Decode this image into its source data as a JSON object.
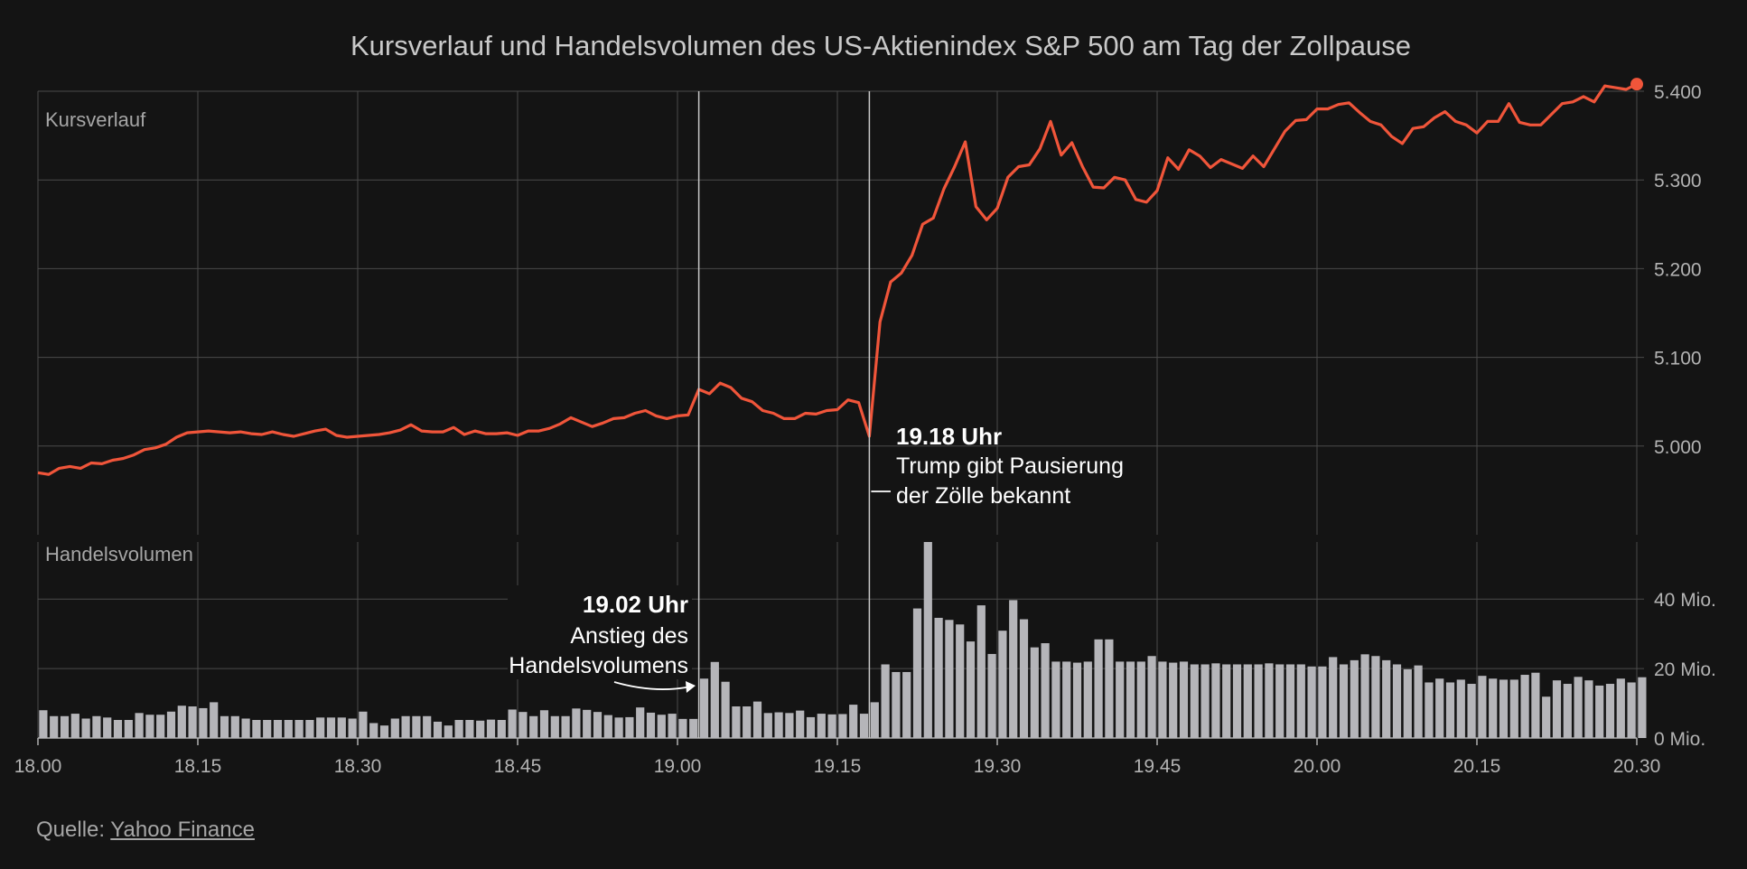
{
  "chart_data": {
    "type": "line+bar",
    "title": "Kursverlauf und Handelsvolumen des US-Aktienindex S&P 500 am Tag der Zollpause",
    "price_panel_label": "Kursverlauf",
    "volume_panel_label": "Handelsvolumen",
    "x_range_minutes": [
      0,
      150
    ],
    "x_ticks": [
      {
        "m": 0,
        "label": "18.00"
      },
      {
        "m": 15,
        "label": "18.15"
      },
      {
        "m": 30,
        "label": "18.30"
      },
      {
        "m": 45,
        "label": "18.45"
      },
      {
        "m": 60,
        "label": "19.00"
      },
      {
        "m": 75,
        "label": "19.15"
      },
      {
        "m": 90,
        "label": "19.30"
      },
      {
        "m": 105,
        "label": "19.45"
      },
      {
        "m": 120,
        "label": "20.00"
      },
      {
        "m": 135,
        "label": "20.15"
      },
      {
        "m": 150,
        "label": "20.30"
      }
    ],
    "price_ylim": [
      4900,
      5400
    ],
    "price_ticks": [
      {
        "v": 5000,
        "label": "5.000"
      },
      {
        "v": 5100,
        "label": "5.100"
      },
      {
        "v": 5200,
        "label": "5.200"
      },
      {
        "v": 5300,
        "label": "5.300"
      },
      {
        "v": 5400,
        "label": "5.400"
      }
    ],
    "volume_ylim_mio": [
      0,
      40
    ],
    "volume_ticks": [
      {
        "v": 0,
        "label": "0 Mio."
      },
      {
        "v": 20,
        "label": "20 Mio."
      },
      {
        "v": 40,
        "label": "40 Mio."
      }
    ],
    "line_color": "#f0553a",
    "bar_color": "#b5b5b9",
    "price_series": [
      [
        0,
        4970
      ],
      [
        1,
        4968
      ],
      [
        2,
        4975
      ],
      [
        3,
        4977
      ],
      [
        4,
        4975
      ],
      [
        5,
        4981
      ],
      [
        6,
        4980
      ],
      [
        7,
        4984
      ],
      [
        8,
        4986
      ],
      [
        9,
        4990
      ],
      [
        10,
        4996
      ],
      [
        11,
        4998
      ],
      [
        12,
        5002
      ],
      [
        13,
        5010
      ],
      [
        14,
        5015
      ],
      [
        15,
        5016
      ],
      [
        16,
        5017
      ],
      [
        17,
        5016
      ],
      [
        18,
        5015
      ],
      [
        19,
        5016
      ],
      [
        20,
        5014
      ],
      [
        21,
        5013
      ],
      [
        22,
        5016
      ],
      [
        23,
        5013
      ],
      [
        24,
        5011
      ],
      [
        25,
        5014
      ],
      [
        26,
        5017
      ],
      [
        27,
        5019
      ],
      [
        28,
        5012
      ],
      [
        29,
        5010
      ],
      [
        30,
        5011
      ],
      [
        31,
        5012
      ],
      [
        32,
        5013
      ],
      [
        33,
        5015
      ],
      [
        34,
        5018
      ],
      [
        35,
        5024
      ],
      [
        36,
        5017
      ],
      [
        37,
        5016
      ],
      [
        38,
        5016
      ],
      [
        39,
        5021
      ],
      [
        40,
        5013
      ],
      [
        41,
        5017
      ],
      [
        42,
        5014
      ],
      [
        43,
        5014
      ],
      [
        44,
        5015
      ],
      [
        45,
        5012
      ],
      [
        46,
        5017
      ],
      [
        47,
        5017
      ],
      [
        48,
        5020
      ],
      [
        49,
        5025
      ],
      [
        50,
        5032
      ],
      [
        51,
        5027
      ],
      [
        52,
        5022
      ],
      [
        53,
        5026
      ],
      [
        54,
        5031
      ],
      [
        55,
        5032
      ],
      [
        56,
        5037
      ],
      [
        57,
        5040
      ],
      [
        58,
        5034
      ],
      [
        59,
        5031
      ],
      [
        60,
        5034
      ],
      [
        61,
        5035
      ],
      [
        62,
        5064
      ],
      [
        63,
        5059
      ],
      [
        64,
        5071
      ],
      [
        65,
        5066
      ],
      [
        66,
        5054
      ],
      [
        67,
        5050
      ],
      [
        68,
        5040
      ],
      [
        69,
        5037
      ],
      [
        70,
        5031
      ],
      [
        71,
        5031
      ],
      [
        72,
        5037
      ],
      [
        73,
        5036
      ],
      [
        74,
        5040
      ],
      [
        75,
        5041
      ],
      [
        76,
        5052
      ],
      [
        77,
        5049
      ],
      [
        78,
        5011
      ],
      [
        79,
        5140
      ],
      [
        80,
        5185
      ],
      [
        81,
        5195
      ],
      [
        82,
        5215
      ],
      [
        83,
        5250
      ],
      [
        84,
        5257
      ],
      [
        85,
        5290
      ],
      [
        86,
        5315
      ],
      [
        87,
        5343
      ],
      [
        88,
        5270
      ],
      [
        89,
        5255
      ],
      [
        90,
        5268
      ],
      [
        91,
        5303
      ],
      [
        92,
        5315
      ],
      [
        93,
        5317
      ],
      [
        94,
        5335
      ],
      [
        95,
        5366
      ],
      [
        96,
        5328
      ],
      [
        97,
        5342
      ],
      [
        98,
        5315
      ],
      [
        99,
        5292
      ],
      [
        100,
        5291
      ],
      [
        101,
        5303
      ],
      [
        102,
        5300
      ],
      [
        103,
        5278
      ],
      [
        104,
        5275
      ],
      [
        105,
        5288
      ],
      [
        106,
        5325
      ],
      [
        107,
        5312
      ],
      [
        108,
        5334
      ],
      [
        109,
        5327
      ],
      [
        110,
        5314
      ],
      [
        111,
        5323
      ],
      [
        112,
        5318
      ],
      [
        113,
        5313
      ],
      [
        114,
        5327
      ],
      [
        115,
        5315
      ],
      [
        116,
        5335
      ],
      [
        117,
        5355
      ],
      [
        118,
        5367
      ],
      [
        119,
        5368
      ],
      [
        120,
        5380
      ],
      [
        121,
        5380
      ],
      [
        122,
        5385
      ],
      [
        123,
        5387
      ],
      [
        124,
        5376
      ],
      [
        125,
        5366
      ],
      [
        126,
        5362
      ],
      [
        127,
        5349
      ],
      [
        128,
        5341
      ],
      [
        129,
        5358
      ],
      [
        130,
        5360
      ],
      [
        131,
        5370
      ],
      [
        132,
        5377
      ],
      [
        133,
        5366
      ],
      [
        134,
        5362
      ],
      [
        135,
        5353
      ],
      [
        136,
        5366
      ],
      [
        137,
        5366
      ],
      [
        138,
        5386
      ],
      [
        139,
        5365
      ],
      [
        140,
        5362
      ],
      [
        141,
        5362
      ],
      [
        142,
        5374
      ],
      [
        143,
        5386
      ],
      [
        144,
        5388
      ],
      [
        145,
        5394
      ],
      [
        146,
        5388
      ],
      [
        147,
        5406
      ],
      [
        148,
        5404
      ],
      [
        149,
        5402
      ],
      [
        150,
        5408
      ]
    ],
    "volume_mio": [
      8.0,
      6.3,
      6.3,
      7.0,
      5.6,
      6.3,
      5.9,
      5.2,
      5.2,
      7.2,
      6.7,
      6.7,
      7.6,
      9.3,
      9.1,
      8.6,
      10.3,
      6.3,
      6.3,
      5.6,
      5.2,
      5.2,
      5.2,
      5.2,
      5.2,
      5.2,
      5.9,
      5.9,
      5.9,
      5.6,
      7.6,
      4.3,
      3.6,
      5.6,
      6.3,
      6.3,
      6.3,
      4.7,
      3.6,
      5.2,
      5.2,
      5.0,
      5.3,
      5.2,
      8.2,
      7.5,
      6.3,
      8.0,
      6.3,
      6.3,
      8.5,
      8.1,
      7.5,
      6.6,
      5.9,
      6.0,
      8.8,
      7.3,
      6.7,
      7.0,
      5.5,
      5.5,
      17.1,
      21.9,
      16.2,
      9.1,
      9.1,
      10.5,
      7.2,
      7.4,
      7.2,
      7.9,
      6.0,
      7.0,
      6.8,
      6.9,
      9.6,
      7.0,
      10.3,
      21.2,
      19.0,
      19.0,
      37.3,
      56.8,
      34.6,
      34.0,
      32.7,
      27.8,
      38.2,
      24.2,
      30.9,
      39.7,
      34.2,
      26.1,
      27.3,
      22.0,
      22.0,
      21.7,
      22.0,
      28.4,
      28.4,
      22.0,
      22.0,
      22.0,
      23.6,
      22.0,
      21.7,
      22.0,
      21.2,
      21.2,
      21.5,
      21.2,
      21.2,
      21.2,
      21.2,
      21.5,
      21.2,
      21.2,
      21.2,
      20.6,
      20.6,
      23.3,
      21.2,
      22.4,
      24.1,
      23.6,
      22.4,
      21.2,
      19.8,
      20.9,
      16.0,
      17.1,
      16.0,
      16.8,
      15.6,
      17.9,
      17.1,
      16.8,
      16.8,
      18.2,
      18.8,
      11.9,
      16.6,
      15.6,
      17.6,
      16.6,
      15.1,
      15.6,
      17.1,
      16.0,
      17.5
    ],
    "annotations": [
      {
        "time": "19.02 Uhr",
        "text_lines": [
          "Anstieg des",
          "Handelsvolumens"
        ]
      },
      {
        "time": "19.18 Uhr",
        "text_lines": [
          "Trump gibt Pausierung",
          "der Zölle bekannt"
        ]
      }
    ],
    "source_prefix": "Quelle: ",
    "source_link": "Yahoo Finance"
  }
}
